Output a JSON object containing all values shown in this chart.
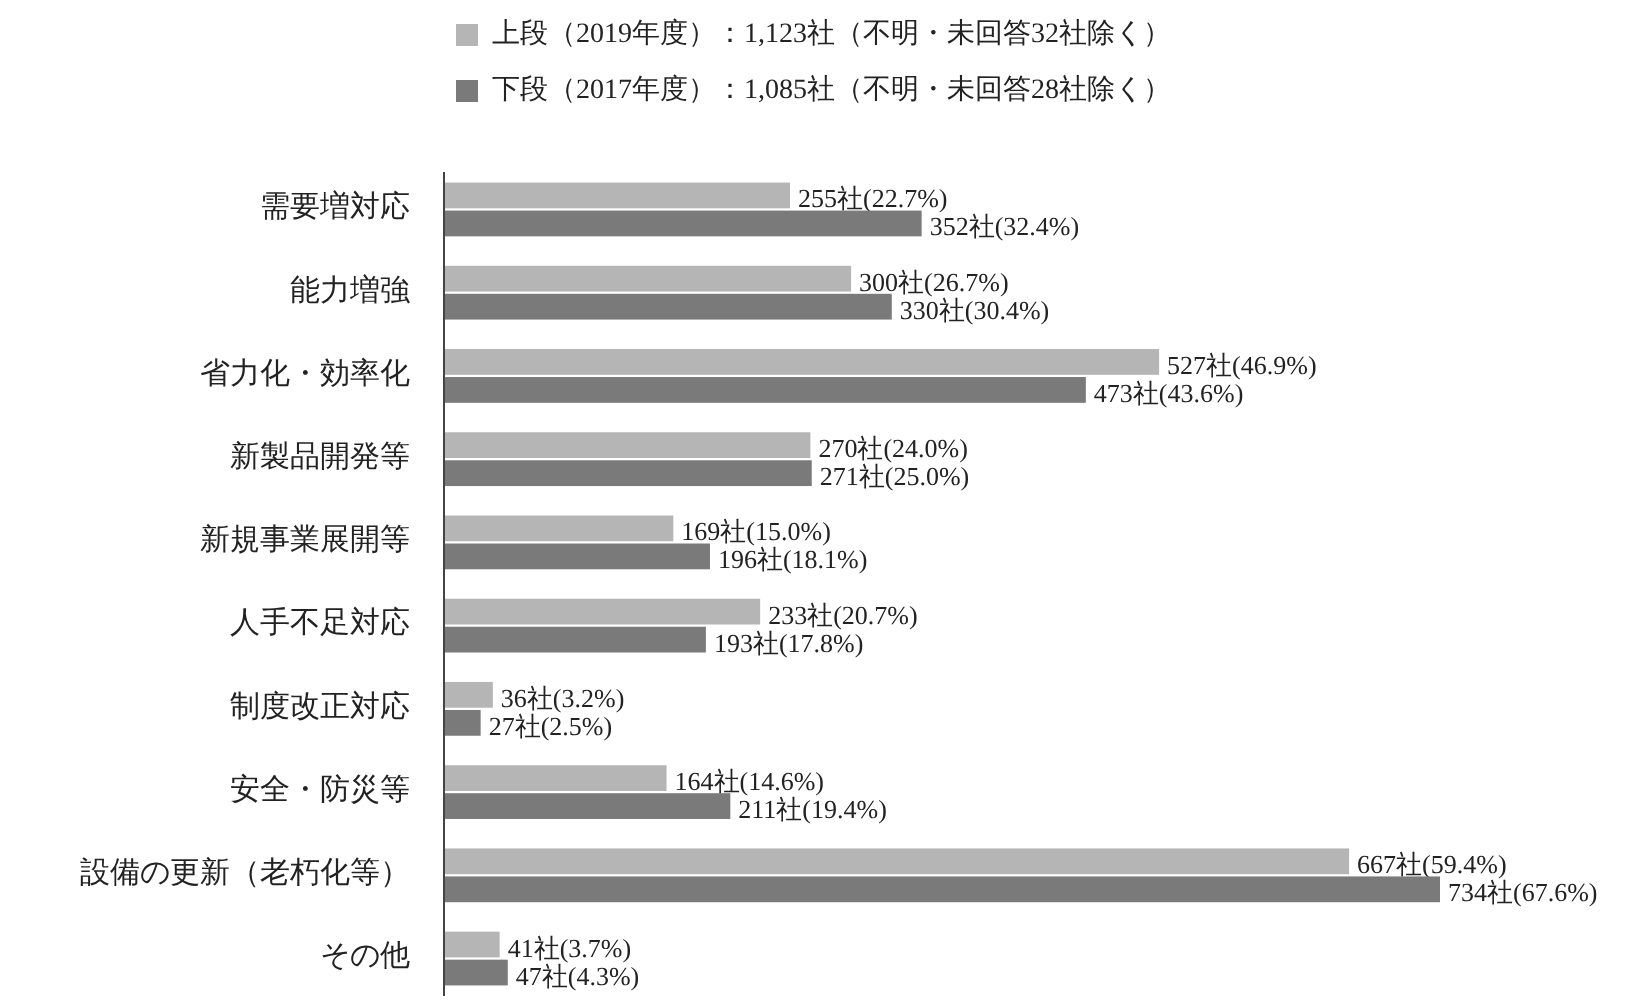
{
  "chart_data": {
    "type": "bar",
    "orientation": "horizontal",
    "legend": "top",
    "categories": [
      "需要増対応",
      "能力増強",
      "省力化・効率化",
      "新製品開発等",
      "新規事業展開等",
      "人手不足対応",
      "制度改正対応",
      "安全・防災等",
      "設備の更新（老朽化等）",
      "その他"
    ],
    "series": [
      {
        "name": "上段（2019年度）：1,123社（不明・未回答32社除く）",
        "color": "#b5b5b5",
        "values": [
          255,
          300,
          527,
          270,
          169,
          233,
          36,
          164,
          667,
          41
        ],
        "value_labels": [
          "255社(22.7%)",
          "300社(26.7%)",
          "527社(46.9%)",
          "270社(24.0%)",
          "169社(15.0%)",
          "233社(20.7%)",
          "36社(3.2%)",
          "164社(14.6%)",
          "667社(59.4%)",
          "41社(3.7%)"
        ]
      },
      {
        "name": "下段（2017年度）：1,085社（不明・未回答28社除く）",
        "color": "#7a7a7a",
        "values": [
          352,
          330,
          473,
          271,
          196,
          193,
          27,
          211,
          734,
          47
        ],
        "value_labels": [
          "352社(32.4%)",
          "330社(30.4%)",
          "473社(43.6%)",
          "271社(25.0%)",
          "196社(18.1%)",
          "193社(17.8%)",
          "27社(2.5%)",
          "211社(19.4%)",
          "734社(67.6%)",
          "47社(4.3%)"
        ]
      }
    ]
  }
}
